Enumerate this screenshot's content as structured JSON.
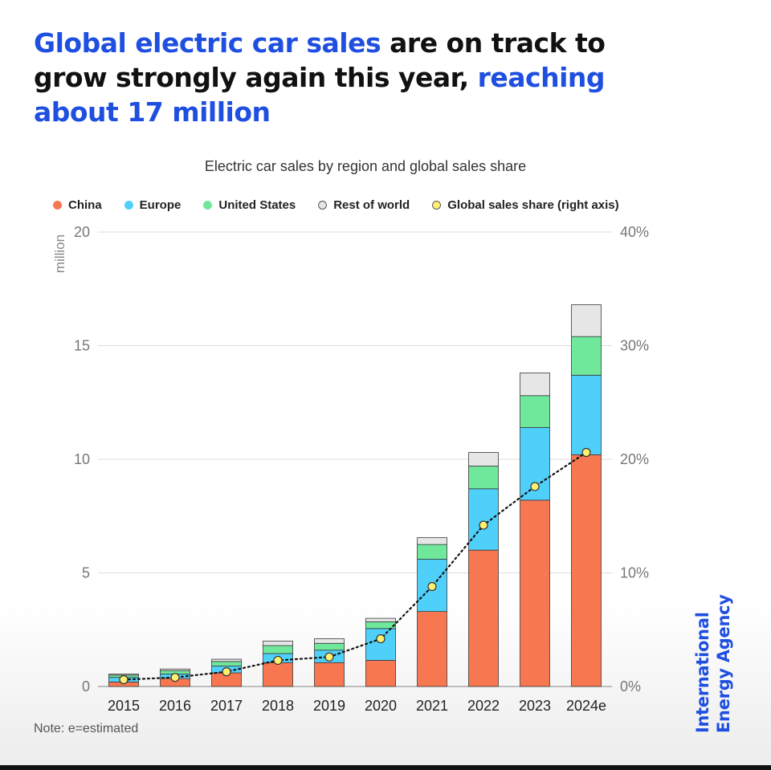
{
  "headline": {
    "part1": "Global electric car sales",
    "part2": " are on track to grow strongly again this year, ",
    "part3": "reaching about 17 million"
  },
  "note": "Note:  e=estimated",
  "brand": {
    "line1": "International",
    "line2": "Energy Agency"
  },
  "colors": {
    "china": "#f77750",
    "europe": "#4fd0fb",
    "united_states": "#6fe89c",
    "rest_of_world": "#e6e6e6",
    "share_marker": "#fff070",
    "accent": "#1f4fe0"
  },
  "chart_data": {
    "type": "bar",
    "stacked": true,
    "title": "Electric car sales by region and global sales share",
    "ylabel": "million",
    "ylim": [
      0,
      20
    ],
    "yticks": [
      "0",
      "5",
      "10",
      "15",
      "20"
    ],
    "y2lim": [
      0,
      40
    ],
    "y2ticks": [
      "0%",
      "10%",
      "20%",
      "30%",
      "40%"
    ],
    "grid": true,
    "legend_position": "top",
    "categories": [
      "2015",
      "2016",
      "2017",
      "2018",
      "2019",
      "2020",
      "2021",
      "2022",
      "2023",
      "2024e"
    ],
    "series": [
      {
        "name": "China",
        "values": [
          0.2,
          0.35,
          0.6,
          1.05,
          1.05,
          1.15,
          3.3,
          6.0,
          8.2,
          10.2
        ]
      },
      {
        "name": "Europe",
        "values": [
          0.2,
          0.2,
          0.3,
          0.4,
          0.55,
          1.4,
          2.3,
          2.7,
          3.2,
          3.5
        ]
      },
      {
        "name": "United States",
        "values": [
          0.1,
          0.15,
          0.2,
          0.35,
          0.3,
          0.3,
          0.65,
          1.0,
          1.4,
          1.7
        ]
      },
      {
        "name": "Rest of world",
        "values": [
          0.05,
          0.07,
          0.1,
          0.2,
          0.2,
          0.15,
          0.3,
          0.6,
          1.0,
          1.4
        ]
      }
    ],
    "line_series": {
      "name": "Global sales share (right axis)",
      "axis": "right",
      "values": [
        0.6,
        0.8,
        1.3,
        2.3,
        2.6,
        4.2,
        8.8,
        14.2,
        17.6,
        20.6
      ]
    }
  }
}
